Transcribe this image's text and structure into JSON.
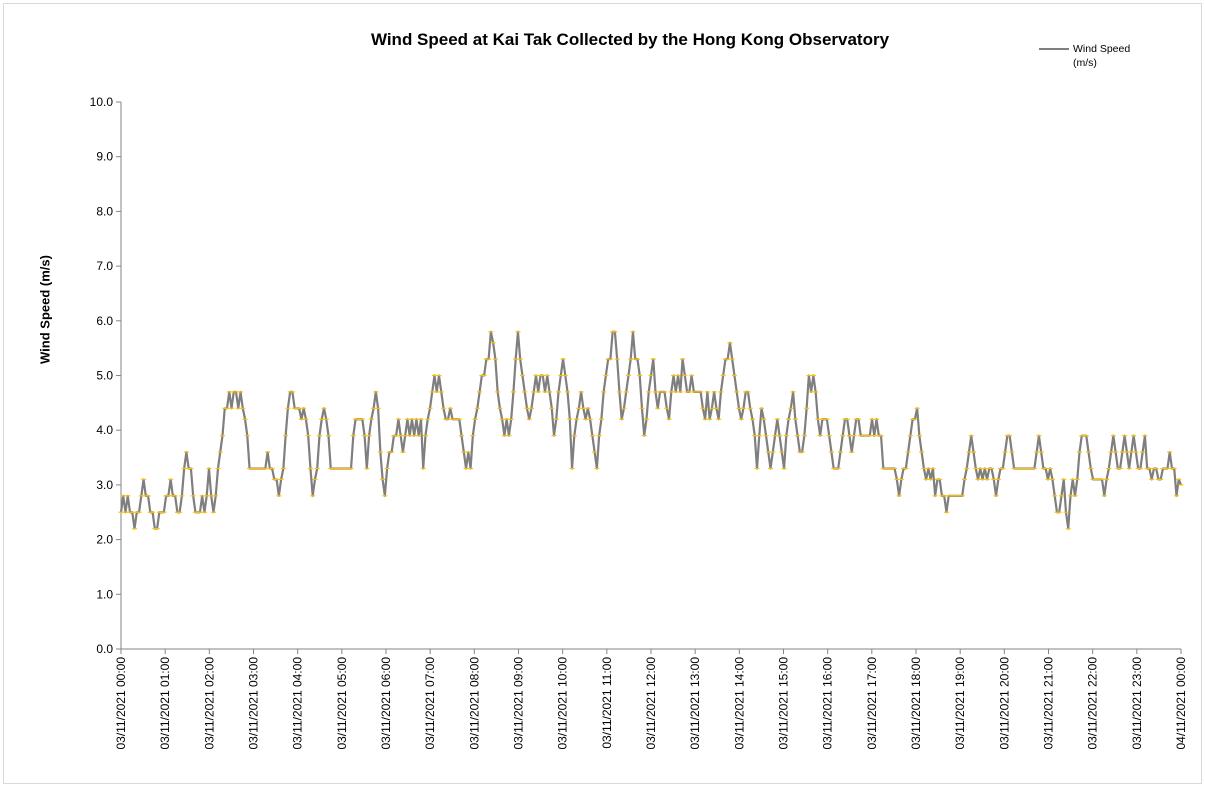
{
  "chart_data": {
    "type": "line",
    "title": "Wind Speed at Kai Tak Collected by the Hong Kong Observatory",
    "ylabel": "Wind Speed (m/s)",
    "xlabel": "",
    "ylim": [
      0,
      10
    ],
    "yticks": [
      "0.0",
      "1.0",
      "2.0",
      "3.0",
      "4.0",
      "5.0",
      "6.0",
      "7.0",
      "8.0",
      "9.0",
      "10.0"
    ],
    "xticks": [
      "03/11/2021 00:00",
      "03/11/2021 01:00",
      "03/11/2021 02:00",
      "03/11/2021 03:00",
      "03/11/2021 04:00",
      "03/11/2021 05:00",
      "03/11/2021 06:00",
      "03/11/2021 07:00",
      "03/11/2021 08:00",
      "03/11/2021 09:00",
      "03/11/2021 10:00",
      "03/11/2021 11:00",
      "03/11/2021 12:00",
      "03/11/2021 13:00",
      "03/11/2021 14:00",
      "03/11/2021 15:00",
      "03/11/2021 16:00",
      "03/11/2021 17:00",
      "03/11/2021 18:00",
      "03/11/2021 19:00",
      "03/11/2021 20:00",
      "03/11/2021 21:00",
      "03/11/2021 22:00",
      "03/11/2021 23:00",
      "04/11/2021 00:00"
    ],
    "legend": "top-right",
    "grid": false,
    "line_color": "#7f7f7f",
    "marker_color": "#ffc000",
    "series": [
      {
        "name": "Wind Speed (m/s)",
        "x_start": "03/11/2021 00:00",
        "x_end": "04/11/2021 00:00",
        "sample_interval_minutes": 6,
        "values": [
          2.5,
          2.8,
          2.5,
          2.8,
          2.5,
          2.5,
          2.2,
          2.5,
          2.5,
          2.8,
          3.1,
          2.8,
          2.8,
          2.5,
          2.5,
          2.2,
          2.2,
          2.5,
          2.5,
          2.5,
          2.8,
          2.8,
          3.1,
          2.8,
          2.8,
          2.5,
          2.5,
          2.8,
          3.3,
          3.6,
          3.3,
          3.3,
          2.8,
          2.5,
          2.5,
          2.5,
          2.8,
          2.5,
          2.8,
          3.3,
          2.8,
          2.5,
          2.8,
          3.3,
          3.6,
          3.9,
          4.4,
          4.4,
          4.7,
          4.4,
          4.7,
          4.7,
          4.4,
          4.7,
          4.4,
          4.2,
          3.9,
          3.3,
          3.3,
          3.3,
          3.3,
          3.3,
          3.3,
          3.3,
          3.3,
          3.6,
          3.3,
          3.3,
          3.1,
          3.1,
          2.8,
          3.1,
          3.3,
          3.9,
          4.4,
          4.7,
          4.7,
          4.4,
          4.4,
          4.4,
          4.2,
          4.4,
          4.2,
          3.9,
          3.3,
          2.8,
          3.1,
          3.3,
          3.9,
          4.2,
          4.4,
          4.2,
          3.9,
          3.3,
          3.3,
          3.3,
          3.3,
          3.3,
          3.3,
          3.3,
          3.3,
          3.3,
          3.3,
          3.9,
          4.2,
          4.2,
          4.2,
          4.2,
          3.9,
          3.3,
          3.9,
          4.2,
          4.4,
          4.7,
          4.4,
          3.6,
          3.1,
          2.8,
          3.3,
          3.6,
          3.6,
          3.9,
          3.9,
          4.2,
          3.9,
          3.6,
          3.9,
          4.2,
          3.9,
          4.2,
          3.9,
          4.2,
          3.9,
          4.2,
          3.3,
          3.9,
          4.2,
          4.4,
          4.7,
          5.0,
          4.7,
          5.0,
          4.7,
          4.4,
          4.2,
          4.2,
          4.4,
          4.2,
          4.2,
          4.2,
          4.2,
          3.9,
          3.6,
          3.3,
          3.6,
          3.3,
          3.9,
          4.2,
          4.4,
          4.7,
          5.0,
          5.0,
          5.3,
          5.3,
          5.8,
          5.6,
          5.3,
          4.7,
          4.4,
          4.2,
          3.9,
          4.2,
          3.9,
          4.2,
          4.7,
          5.3,
          5.8,
          5.3,
          5.0,
          4.7,
          4.4,
          4.2,
          4.4,
          4.7,
          5.0,
          4.7,
          5.0,
          5.0,
          4.7,
          5.0,
          4.7,
          4.4,
          3.9,
          4.2,
          4.7,
          5.0,
          5.3,
          5.0,
          4.7,
          4.2,
          3.3,
          3.9,
          4.2,
          4.4,
          4.7,
          4.4,
          4.2,
          4.4,
          4.2,
          3.9,
          3.6,
          3.3,
          3.9,
          4.2,
          4.7,
          5.0,
          5.3,
          5.3,
          5.8,
          5.8,
          5.3,
          4.7,
          4.2,
          4.4,
          4.7,
          5.0,
          5.3,
          5.8,
          5.3,
          5.3,
          5.0,
          4.4,
          3.9,
          4.2,
          4.7,
          5.0,
          5.3,
          4.7,
          4.4,
          4.7,
          4.7,
          4.7,
          4.4,
          4.2,
          4.7,
          5.0,
          4.7,
          5.0,
          4.7,
          5.3,
          5.0,
          4.7,
          4.7,
          5.0,
          4.7,
          4.7,
          4.7,
          4.7,
          4.4,
          4.2,
          4.7,
          4.2,
          4.4,
          4.7,
          4.4,
          4.2,
          4.7,
          5.0,
          5.3,
          5.3,
          5.6,
          5.3,
          5.0,
          4.7,
          4.4,
          4.2,
          4.4,
          4.7,
          4.7,
          4.4,
          4.2,
          3.9,
          3.3,
          3.9,
          4.4,
          4.2,
          3.9,
          3.6,
          3.3,
          3.6,
          3.9,
          4.2,
          3.9,
          3.6,
          3.3,
          3.9,
          4.2,
          4.4,
          4.7,
          4.2,
          3.9,
          3.6,
          3.6,
          3.9,
          4.4,
          5.0,
          4.7,
          5.0,
          4.7,
          4.2,
          3.9,
          4.2,
          4.2,
          4.2,
          3.9,
          3.6,
          3.3,
          3.3,
          3.3,
          3.6,
          3.9,
          4.2,
          4.2,
          3.9,
          3.6,
          3.9,
          4.2,
          4.2,
          3.9,
          3.9,
          3.9,
          3.9,
          3.9,
          4.2,
          3.9,
          4.2,
          3.9,
          3.9,
          3.3,
          3.3,
          3.3,
          3.3,
          3.3,
          3.3,
          3.1,
          2.8,
          3.1,
          3.3,
          3.3,
          3.6,
          3.9,
          4.2,
          4.2,
          4.4,
          3.9,
          3.6,
          3.3,
          3.1,
          3.3,
          3.1,
          3.3,
          2.8,
          3.1,
          3.1,
          2.8,
          2.8,
          2.5,
          2.8,
          2.8,
          2.8,
          2.8,
          2.8,
          2.8,
          2.8,
          3.1,
          3.3,
          3.6,
          3.9,
          3.6,
          3.3,
          3.1,
          3.3,
          3.1,
          3.3,
          3.1,
          3.3,
          3.3,
          3.1,
          2.8,
          3.1,
          3.3,
          3.3,
          3.6,
          3.9,
          3.9,
          3.6,
          3.3,
          3.3,
          3.3,
          3.3,
          3.3,
          3.3,
          3.3,
          3.3,
          3.3,
          3.3,
          3.6,
          3.9,
          3.6,
          3.3,
          3.3,
          3.1,
          3.3,
          3.1,
          2.8,
          2.5,
          2.5,
          2.8,
          3.1,
          2.5,
          2.2,
          2.8,
          3.1,
          2.8,
          3.1,
          3.6,
          3.9,
          3.9,
          3.9,
          3.6,
          3.3,
          3.1,
          3.1,
          3.1,
          3.1,
          3.1,
          2.8,
          3.1,
          3.3,
          3.6,
          3.9,
          3.6,
          3.3,
          3.3,
          3.6,
          3.9,
          3.6,
          3.3,
          3.6,
          3.9,
          3.6,
          3.3,
          3.3,
          3.6,
          3.9,
          3.3,
          3.3,
          3.1,
          3.3,
          3.3,
          3.1,
          3.1,
          3.3,
          3.3,
          3.3,
          3.6,
          3.3,
          3.3,
          2.8,
          3.1,
          3.0
        ]
      }
    ]
  },
  "legend_label_line1": "Wind Speed",
  "legend_label_line2": "(m/s)"
}
